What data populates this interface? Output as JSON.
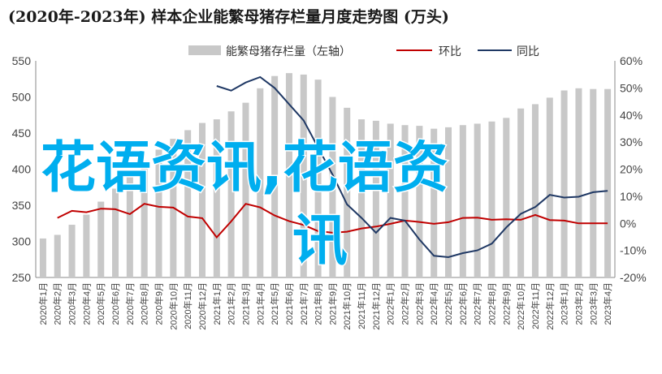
{
  "title": "(2020年-2023年) 样本企业能繁母猪存栏量月度走势图 (万头)",
  "watermark": "花语资讯,花语资讯",
  "colors": {
    "bar": "#c8c8c8",
    "huanbi": "#c00000",
    "tongbi": "#1f3864",
    "watermark": "#00aeef"
  },
  "chart_data": {
    "type": "bar",
    "categories": [
      "2020年1月",
      "2020年2月",
      "2020年3月",
      "2020年4月",
      "2020年5月",
      "2020年6月",
      "2020年7月",
      "2020年8月",
      "2020年9月",
      "2020年10月",
      "2020年11月",
      "2020年12月",
      "2021年1月",
      "2021年2月",
      "2021年3月",
      "2021年4月",
      "2021年5月",
      "2021年6月",
      "2021年7月",
      "2021年8月",
      "2021年9月",
      "2021年10月",
      "2021年11月",
      "2021年12月",
      "2022年1月",
      "2022年2月",
      "2022年3月",
      "2022年4月",
      "2022年5月",
      "2022年6月",
      "2022年7月",
      "2022年8月",
      "2022年9月",
      "2022年10月",
      "2022年11月",
      "2022年12月",
      "2023年1月",
      "2023年2月",
      "2023年3月",
      "2023年4月"
    ],
    "series": [
      {
        "name": "能繁母猪存栏量（左轴）",
        "axis": "left",
        "values": [
          304,
          309,
          323,
          337,
          355,
          373,
          392,
          410,
          427,
          442,
          454,
          464,
          469,
          480,
          492,
          512,
          529,
          533,
          531,
          524,
          500,
          485,
          469,
          467,
          463,
          461,
          460,
          456,
          458,
          461,
          463,
          466,
          471,
          484,
          490,
          499,
          509,
          512,
          511,
          511
        ]
      },
      {
        "name": "环比",
        "axis": "right",
        "values": [
          null,
          2,
          4.6,
          4.1,
          5.4,
          5.2,
          3.4,
          7.2,
          6.1,
          5.8,
          2.5,
          1.9,
          -5.2,
          0.7,
          7.2,
          5.9,
          2.9,
          0.8,
          -0.6,
          -2.9,
          -3.5,
          -3.1,
          -1.9,
          -1.2,
          -0.2,
          1,
          0.5,
          -0.2,
          0.4,
          2,
          2.1,
          1.3,
          1.5,
          1.3,
          3.1,
          1.2,
          1,
          0,
          0,
          0
        ]
      },
      {
        "name": "同比",
        "axis": "right",
        "values": [
          null,
          null,
          null,
          null,
          null,
          null,
          null,
          null,
          null,
          null,
          null,
          null,
          50.7,
          49,
          52,
          54,
          50,
          44,
          38,
          28,
          18,
          7,
          2,
          -3.5,
          2,
          1,
          -6,
          -12,
          -12.5,
          -11,
          -10,
          -7.5,
          -1.5,
          3.5,
          6,
          10.5,
          9.5,
          9.8,
          11.5,
          12
        ]
      }
    ],
    "y_left": {
      "min": 250,
      "max": 550,
      "ticks": [
        250,
        300,
        350,
        400,
        450,
        500,
        550
      ]
    },
    "y_right": {
      "min": -20,
      "max": 60,
      "ticks": [
        "-20%",
        "-10%",
        "0%",
        "10%",
        "20%",
        "30%",
        "40%",
        "50%",
        "60%"
      ]
    },
    "legend": "top",
    "grid": false
  }
}
